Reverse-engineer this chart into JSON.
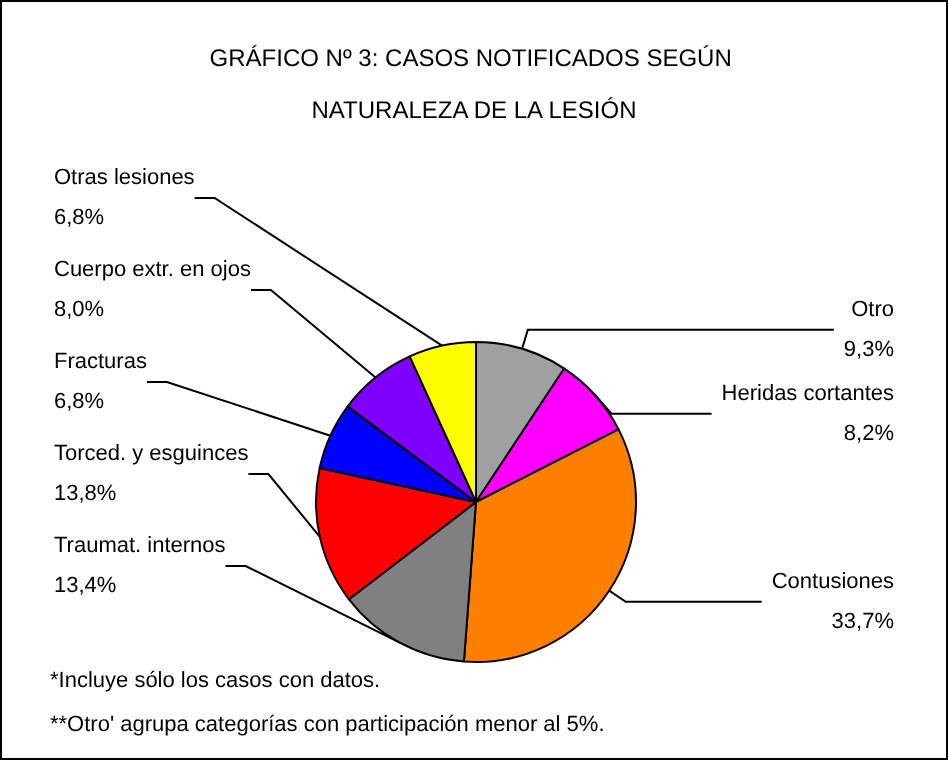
{
  "chart_data": {
    "type": "pie",
    "title": "GRÁFICO Nº 3: CASOS NOTIFICADOS SEGÚN NATURALEZA DE LA LESIÓN",
    "categories": [
      "Otro",
      "Heridas cortantes",
      "Contusiones",
      "Traumat. internos",
      "Torced. y esguinces",
      "Fracturas",
      "Cuerpo extr. en ojos",
      "Otras lesiones"
    ],
    "values": [
      9.3,
      8.2,
      33.7,
      13.4,
      13.8,
      6.8,
      8.0,
      6.8
    ],
    "value_labels": [
      "9,3%",
      "8,2%",
      "33,7%",
      "13,4%",
      "13,8%",
      "6,8%",
      "8,0%",
      "6,8%"
    ],
    "colors": [
      "#a0a0a0",
      "#ff00ff",
      "#ff8000",
      "#808080",
      "#ff0000",
      "#0000ff",
      "#8000ff",
      "#ffff00"
    ],
    "annotations": [
      "*Incluye sólo los casos con datos.",
      "**Otro' agrupa categorías con participación menor al 5%."
    ],
    "legend": false
  }
}
